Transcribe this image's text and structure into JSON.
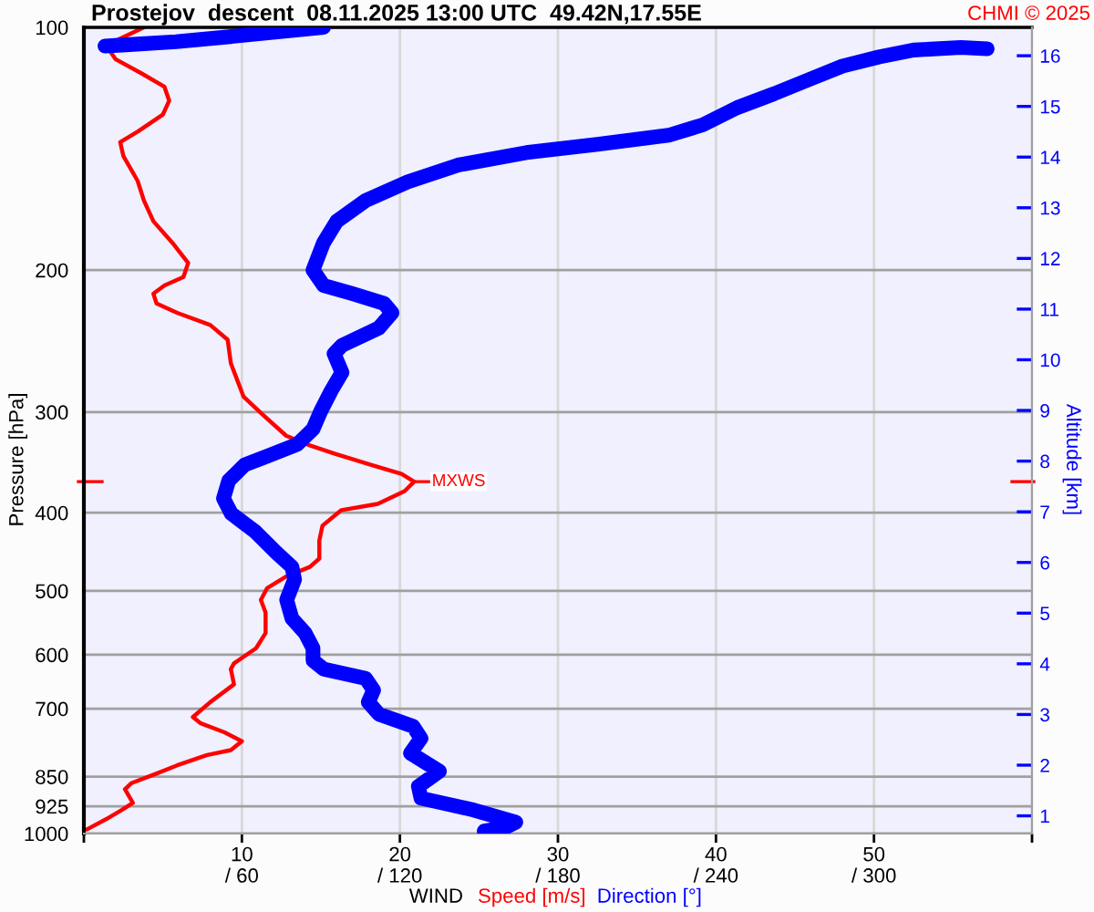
{
  "chart_data": {
    "type": "line",
    "orientation": "horizontal",
    "title": "Prostejov  descent  08.11.2025 13:00 UTC  49.42N,17.55E",
    "xlabel": "WIND",
    "ylabel": "Pressure [hPa]",
    "y2label": "Altitude [km]",
    "annotations": [
      "CHMI © 2025",
      {
        "text": "MXWS",
        "x": 20.9,
        "y": 366
      }
    ],
    "series": [
      {
        "name": "Speed [m/s]",
        "color": "#ff0000",
        "x": [
          100,
          105.3,
          109.5,
          113.9,
          118.5,
          123.3,
          128.3,
          134.7,
          138.8,
          144.4,
          155,
          164,
          174,
          185,
          196,
          204,
          209,
          214,
          220,
          226,
          234,
          244,
          261,
          287,
          302,
          321,
          330,
          338,
          349,
          358,
          366,
          376,
          390,
          397,
          415,
          433,
          456,
          467,
          480,
          496,
          513,
          532,
          564,
          589,
          615,
          625,
          653,
          687,
          717,
          730,
          749,
          768,
          788,
          799,
          823,
          844,
          866,
          881,
          916,
          935,
          960,
          988
        ],
        "values": [
          3.8,
          1.4,
          2.0,
          3.6,
          5.1,
          5.4,
          5.0,
          3.4,
          2.3,
          2.5,
          3.4,
          3.8,
          4.4,
          5.6,
          6.6,
          6.3,
          5.1,
          4.4,
          4.6,
          5.9,
          8.0,
          9.1,
          9.3,
          10.1,
          11.3,
          12.8,
          14.3,
          15.9,
          18.2,
          20.1,
          20.9,
          20.3,
          18.6,
          16.3,
          15.1,
          14.9,
          14.9,
          14.3,
          12.8,
          11.6,
          11.2,
          11.5,
          11.5,
          10.9,
          9.5,
          9.3,
          9.5,
          8.0,
          6.9,
          7.4,
          8.9,
          10.0,
          9.3,
          7.8,
          5.9,
          4.5,
          3.0,
          2.6,
          3.1,
          2.4,
          1.4,
          0.2
        ]
      },
      {
        "name": "Direction [°]",
        "color": "#0000ff",
        "axis": "x2",
        "x": [
          100,
          102.2,
          104.2,
          105.1,
          105.5,
          null,
          106.3,
          105.9,
          106.7,
          108.8,
          111.7,
          116.2,
          120.9,
          125.8,
          132.1,
          136.1,
          139.7,
          143,
          148.2,
          155.5,
          164,
          174,
          185,
          200,
          209,
          214,
          220,
          226,
          236,
          248,
          254,
          268,
          282,
          299,
          315,
          329,
          340,
          349,
          365,
          384,
          401,
          422,
          448,
          467,
          484,
          513,
          541,
          564,
          589,
          610,
          625,
          642,
          664,
          687,
          711,
          736,
          762,
          795,
          837,
          874,
          904,
          935,
          968,
          983,
          993
        ],
        "values": [
          91,
          62,
          35,
          16,
          8,
          null,
          343,
          333,
          315,
          302,
          288,
          275,
          262,
          248,
          235,
          222,
          195,
          168,
          142,
          123,
          107,
          96,
          91,
          87,
          91,
          102,
          114,
          117,
          112,
          98,
          95,
          98,
          94,
          90,
          87,
          81,
          70,
          61,
          55,
          53,
          56,
          65,
          73,
          79,
          80,
          77,
          79,
          84,
          87,
          87,
          91,
          107,
          110,
          108,
          112,
          125,
          128,
          124,
          135,
          127,
          128,
          148,
          164,
          160,
          152
        ]
      }
    ],
    "xlim": [
      0,
      60
    ],
    "xticks": [
      {
        "value": 0,
        "label": null
      },
      10,
      20,
      30,
      40,
      50,
      {
        "value": 60,
        "label": null
      }
    ],
    "x2lim": [
      0,
      360
    ],
    "x2ticks": [
      {
        "value": 60,
        "label": "/ 60"
      },
      {
        "value": 120,
        "label": "/ 120"
      },
      {
        "value": 180,
        "label": "/ 180"
      },
      {
        "value": 240,
        "label": "/ 240"
      },
      {
        "value": 300,
        "label": "/ 300"
      }
    ],
    "ylim": [
      1000,
      100
    ],
    "yticks": [
      100,
      200,
      300,
      400,
      500,
      600,
      700,
      850,
      925,
      1000
    ],
    "y2lim": [
      0.65,
      16.56
    ],
    "y2ticks": [
      1,
      2,
      3,
      4,
      5,
      6,
      7,
      8,
      9,
      10,
      11,
      12,
      13,
      14,
      15,
      16
    ],
    "log": "y",
    "grid": true,
    "legend": "bottom"
  }
}
